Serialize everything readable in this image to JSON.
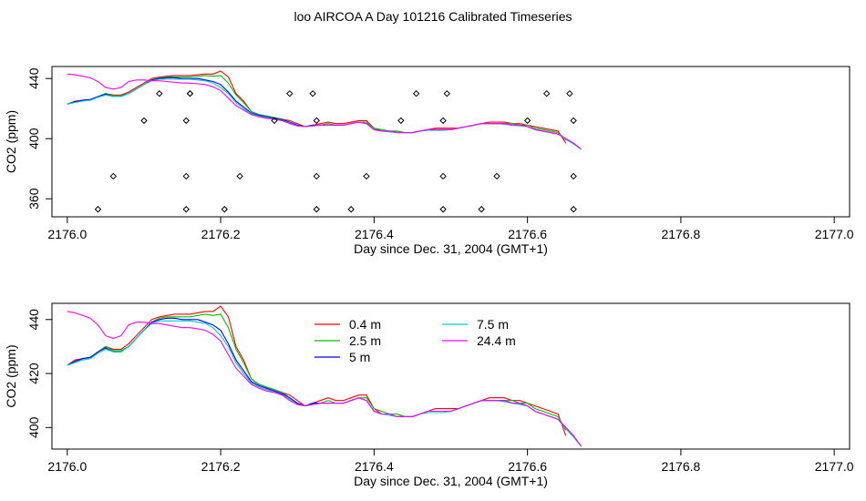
{
  "title": "loo AIRCOA A  Day 101216  Calibrated Timeseries",
  "chart_data": [
    {
      "type": "line",
      "xlabel": "Day since Dec. 31, 2004 (GMT+1)",
      "ylabel": "CO2 (ppm)",
      "xlim": [
        2175.98,
        2177.02
      ],
      "ylim": [
        348,
        448
      ],
      "xticks": [
        2176.0,
        2176.2,
        2176.4,
        2176.6,
        2176.8,
        2177.0
      ],
      "xtick_labels": [
        "2176.0",
        "2176.2",
        "2176.4",
        "2176.6",
        "2176.8",
        "2177.0"
      ],
      "yticks": [
        360,
        400,
        440
      ],
      "ytick_labels": [
        "360",
        "400",
        "440"
      ],
      "legend": null,
      "series": [
        {
          "name": "0.4 m",
          "color": "#ff0000",
          "x": [
            2176.0,
            2176.01,
            2176.02,
            2176.03,
            2176.04,
            2176.05,
            2176.06,
            2176.07,
            2176.08,
            2176.09,
            2176.1,
            2176.11,
            2176.12,
            2176.13,
            2176.14,
            2176.15,
            2176.16,
            2176.17,
            2176.18,
            2176.19,
            2176.2,
            2176.21,
            2176.22,
            2176.23,
            2176.24,
            2176.25,
            2176.26,
            2176.27,
            2176.28,
            2176.29,
            2176.3,
            2176.31,
            2176.32,
            2176.33,
            2176.34,
            2176.35,
            2176.36,
            2176.37,
            2176.38,
            2176.39,
            2176.4,
            2176.41,
            2176.42,
            2176.43,
            2176.44,
            2176.45,
            2176.46,
            2176.47,
            2176.48,
            2176.49,
            2176.5,
            2176.51,
            2176.52,
            2176.53,
            2176.54,
            2176.55,
            2176.56,
            2176.57,
            2176.58,
            2176.59,
            2176.6,
            2176.61,
            2176.62,
            2176.63,
            2176.64,
            2176.65
          ],
          "y": [
            423,
            425,
            425.5,
            426,
            428,
            430,
            429,
            429,
            431,
            434,
            437,
            440,
            441,
            441.5,
            442,
            442,
            442,
            442.5,
            443,
            443,
            445,
            441,
            430,
            425,
            418,
            416,
            415,
            414,
            413,
            412,
            410,
            408,
            409,
            410,
            411,
            410,
            410,
            411,
            412,
            412,
            407,
            405,
            405,
            405,
            404,
            404,
            405,
            406,
            407,
            407,
            407,
            407,
            408,
            409,
            410,
            411,
            411,
            411,
            410,
            410,
            409,
            408,
            407,
            406,
            405,
            397
          ]
        },
        {
          "name": "2.5 m",
          "color": "#00c000",
          "x": [
            2176.0,
            2176.01,
            2176.02,
            2176.03,
            2176.04,
            2176.05,
            2176.06,
            2176.07,
            2176.08,
            2176.09,
            2176.1,
            2176.11,
            2176.12,
            2176.13,
            2176.14,
            2176.15,
            2176.16,
            2176.17,
            2176.18,
            2176.19,
            2176.2,
            2176.21,
            2176.22,
            2176.23,
            2176.24,
            2176.25,
            2176.26,
            2176.27,
            2176.28,
            2176.29,
            2176.3,
            2176.31,
            2176.32,
            2176.33,
            2176.34,
            2176.35,
            2176.36,
            2176.37,
            2176.38,
            2176.39,
            2176.4,
            2176.41,
            2176.42,
            2176.43,
            2176.44,
            2176.45,
            2176.46,
            2176.47,
            2176.48,
            2176.49,
            2176.5,
            2176.51,
            2176.52,
            2176.53,
            2176.54,
            2176.55,
            2176.56,
            2176.57,
            2176.58,
            2176.59,
            2176.6,
            2176.61,
            2176.62,
            2176.63,
            2176.64,
            2176.65
          ],
          "y": [
            423,
            424.5,
            425.5,
            426,
            428,
            430,
            428.5,
            428.5,
            430,
            433,
            436,
            439,
            440.5,
            441,
            441,
            441,
            441,
            441.5,
            442,
            441.5,
            442,
            437,
            429,
            424,
            418,
            416,
            415,
            414,
            413,
            411,
            409,
            408,
            409,
            409,
            410,
            409,
            409,
            410,
            411,
            411,
            407,
            406,
            405,
            405,
            404,
            404,
            405,
            406,
            406,
            406,
            406,
            407,
            408,
            409,
            410,
            410,
            410,
            410,
            410,
            409,
            409,
            407,
            406,
            405,
            404,
            399
          ]
        },
        {
          "name": "5 m",
          "color": "#0000ff",
          "x": [
            2176.0,
            2176.01,
            2176.02,
            2176.03,
            2176.04,
            2176.05,
            2176.06,
            2176.07,
            2176.08,
            2176.09,
            2176.1,
            2176.11,
            2176.12,
            2176.13,
            2176.14,
            2176.15,
            2176.16,
            2176.17,
            2176.18,
            2176.19,
            2176.2,
            2176.21,
            2176.22,
            2176.23,
            2176.24,
            2176.25,
            2176.26,
            2176.27,
            2176.28,
            2176.29,
            2176.3,
            2176.31,
            2176.32,
            2176.33,
            2176.34,
            2176.35,
            2176.36,
            2176.37,
            2176.38,
            2176.39,
            2176.4,
            2176.41,
            2176.42,
            2176.43,
            2176.44,
            2176.45,
            2176.46,
            2176.47,
            2176.48,
            2176.49,
            2176.5,
            2176.51,
            2176.52,
            2176.53,
            2176.54,
            2176.55,
            2176.56,
            2176.57,
            2176.58,
            2176.59,
            2176.6,
            2176.61,
            2176.62,
            2176.63,
            2176.64,
            2176.65,
            2176.66,
            2176.67
          ],
          "y": [
            423,
            424.5,
            425.5,
            426,
            428,
            429.5,
            428,
            428,
            430,
            433,
            436,
            439,
            440,
            440.5,
            440.5,
            440,
            440,
            440,
            439,
            438,
            436,
            431,
            425,
            421,
            417,
            415.5,
            414.5,
            413.5,
            412.5,
            411,
            409,
            408,
            409,
            409,
            409,
            409,
            409,
            410,
            411,
            410,
            406,
            405,
            405,
            404,
            404,
            404,
            405,
            406,
            406,
            406,
            406,
            407,
            408,
            409,
            410,
            410,
            410,
            410,
            409,
            409,
            408,
            406,
            405,
            404,
            403,
            400,
            397,
            393
          ]
        },
        {
          "name": "7.5 m",
          "color": "#00cccc",
          "x": [
            2176.0,
            2176.01,
            2176.02,
            2176.03,
            2176.04,
            2176.05,
            2176.06,
            2176.07,
            2176.08,
            2176.09,
            2176.1,
            2176.11,
            2176.12,
            2176.13,
            2176.14,
            2176.15,
            2176.16,
            2176.17,
            2176.18,
            2176.19,
            2176.2,
            2176.21,
            2176.22,
            2176.23,
            2176.24,
            2176.25,
            2176.26,
            2176.27,
            2176.28,
            2176.29,
            2176.3,
            2176.31,
            2176.32,
            2176.33,
            2176.34,
            2176.35,
            2176.36,
            2176.37,
            2176.38,
            2176.39,
            2176.4,
            2176.41,
            2176.42,
            2176.43,
            2176.44,
            2176.45,
            2176.46,
            2176.47,
            2176.48,
            2176.49,
            2176.5,
            2176.51,
            2176.52,
            2176.53,
            2176.54,
            2176.55,
            2176.56,
            2176.57,
            2176.58,
            2176.59,
            2176.6,
            2176.61,
            2176.62,
            2176.63,
            2176.64,
            2176.65,
            2176.66,
            2176.67
          ],
          "y": [
            423,
            424,
            425,
            425.5,
            427.5,
            429,
            428,
            428,
            430,
            433,
            436,
            438.5,
            439.5,
            439.5,
            439.5,
            439.5,
            439.5,
            439,
            438.5,
            437,
            434,
            430,
            424,
            420,
            416.5,
            415,
            414,
            413,
            412,
            410.5,
            408.5,
            408,
            408.5,
            409,
            409,
            409,
            409,
            410,
            411,
            410,
            406,
            405,
            404.5,
            404,
            404,
            404,
            405,
            405.5,
            405.5,
            405.5,
            406,
            407,
            408,
            409,
            410,
            410,
            410,
            409.5,
            409,
            408.5,
            408,
            406,
            405,
            404,
            403,
            399.5,
            396.5,
            393
          ]
        },
        {
          "name": "24.4 m",
          "color": "#ff00ff",
          "x": [
            2176.0,
            2176.01,
            2176.02,
            2176.03,
            2176.04,
            2176.05,
            2176.06,
            2176.07,
            2176.08,
            2176.09,
            2176.1,
            2176.11,
            2176.12,
            2176.13,
            2176.14,
            2176.15,
            2176.16,
            2176.17,
            2176.18,
            2176.19,
            2176.2,
            2176.21,
            2176.22,
            2176.23,
            2176.24,
            2176.25,
            2176.26,
            2176.27,
            2176.28,
            2176.29,
            2176.3,
            2176.31,
            2176.32,
            2176.33,
            2176.34,
            2176.35,
            2176.36,
            2176.37,
            2176.38,
            2176.39,
            2176.4,
            2176.41,
            2176.42,
            2176.43,
            2176.44,
            2176.45,
            2176.46,
            2176.47,
            2176.48,
            2176.49,
            2176.5,
            2176.51,
            2176.52,
            2176.53,
            2176.54,
            2176.55,
            2176.56,
            2176.57,
            2176.58,
            2176.59,
            2176.6,
            2176.61,
            2176.62,
            2176.63,
            2176.64,
            2176.65,
            2176.66,
            2176.67
          ],
          "y": [
            443,
            442.5,
            441.5,
            440.5,
            438,
            434,
            433,
            434,
            438,
            439,
            439,
            438.5,
            438.5,
            438,
            437.5,
            437,
            437,
            436.5,
            436,
            434.5,
            432,
            427,
            422,
            419,
            416,
            414.5,
            413.5,
            413,
            412,
            410,
            408.5,
            408,
            408.5,
            409,
            409,
            409,
            409,
            410,
            411,
            410,
            406,
            405,
            405,
            404,
            404,
            404,
            405,
            406,
            406,
            406,
            406,
            407,
            408,
            409,
            410,
            410,
            410,
            410,
            409,
            409,
            408,
            406,
            405,
            404,
            403,
            400,
            397,
            393
          ]
        }
      ],
      "point_series": [
        {
          "name": "",
          "color": "#000000",
          "x": [
            2176.04,
            2176.06,
            2176.1,
            2176.12,
            2176.155,
            2176.155,
            2176.155,
            2176.16,
            2176.16,
            2176.205,
            2176.225,
            2176.27,
            2176.29,
            2176.32,
            2176.325,
            2176.325,
            2176.325,
            2176.37,
            2176.39,
            2176.435,
            2176.455,
            2176.49,
            2176.49,
            2176.49,
            2176.495,
            2176.54,
            2176.56,
            2176.6,
            2176.625,
            2176.655,
            2176.66,
            2176.66,
            2176.66
          ],
          "y": [
            353,
            375,
            412,
            430,
            353,
            375,
            412,
            430,
            430,
            353,
            375,
            412,
            430,
            430,
            412,
            375,
            353,
            353,
            375,
            412,
            430,
            353,
            375,
            412,
            430,
            353,
            375,
            412,
            430,
            430,
            412,
            375,
            353
          ]
        }
      ]
    },
    {
      "type": "line",
      "xlabel": "Day since Dec. 31, 2004 (GMT+1)",
      "ylabel": "CO2 (ppm)",
      "xlim": [
        2175.98,
        2177.02
      ],
      "ylim": [
        392,
        446
      ],
      "xticks": [
        2176.0,
        2176.2,
        2176.4,
        2176.6,
        2176.8,
        2177.0
      ],
      "xtick_labels": [
        "2176.0",
        "2176.2",
        "2176.4",
        "2176.6",
        "2176.8",
        "2177.0"
      ],
      "yticks": [
        400,
        420,
        440
      ],
      "ytick_labels": [
        "400",
        "420",
        "440"
      ],
      "legend": "top-left",
      "legend_layout": [
        [
          "0.4 m",
          "2.5 m",
          "5 m"
        ],
        [
          "7.5 m",
          "24.4 m"
        ]
      ],
      "series_ref": "same as first panel"
    }
  ]
}
